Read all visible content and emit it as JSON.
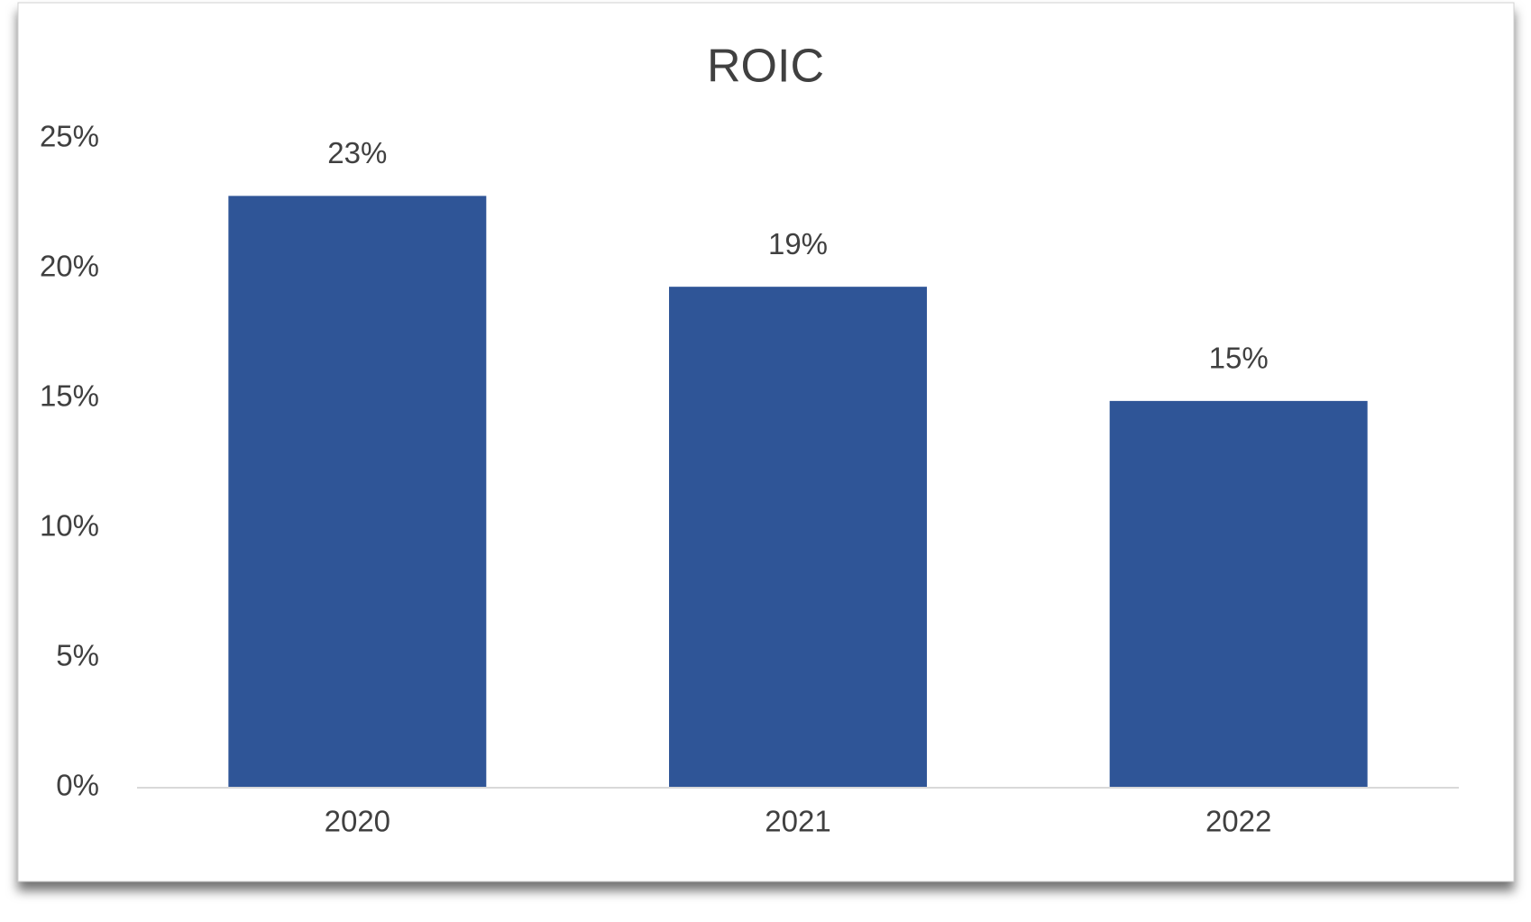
{
  "chart_data": {
    "type": "bar",
    "title": "ROIC",
    "categories": [
      "2020",
      "2021",
      "2022"
    ],
    "values": [
      22.8,
      19.3,
      14.9
    ],
    "value_labels": [
      "23%",
      "19%",
      "15%"
    ],
    "color": "#2f5597",
    "ylim": [
      0,
      25
    ],
    "yticks": [
      {
        "value": 0,
        "label": "0%"
      },
      {
        "value": 5,
        "label": "5%"
      },
      {
        "value": 10,
        "label": "10%"
      },
      {
        "value": 15,
        "label": "15%"
      },
      {
        "value": 20,
        "label": "20%"
      },
      {
        "value": 25,
        "label": "25%"
      }
    ],
    "grid": false
  }
}
